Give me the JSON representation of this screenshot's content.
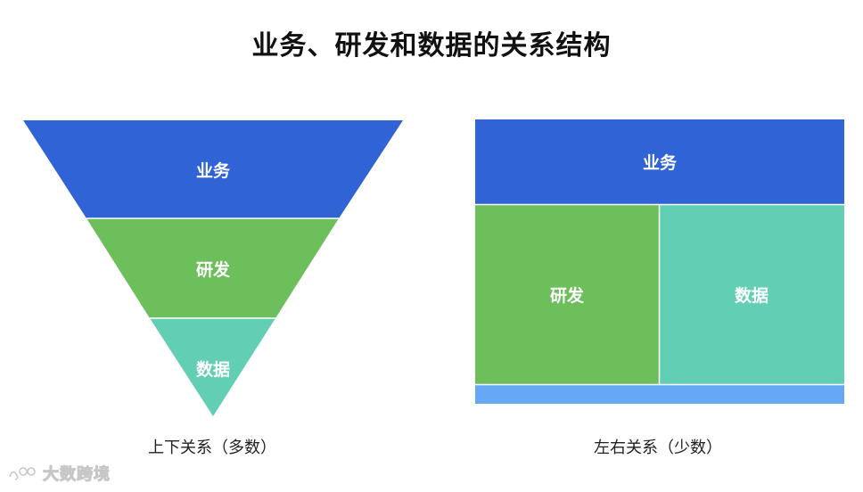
{
  "title": "业务、研发和数据的关系结构",
  "funnel": {
    "layers": [
      {
        "label": "业务",
        "color": "#2F63D6"
      },
      {
        "label": "研发",
        "color": "#6DBF5C"
      },
      {
        "label": "数据",
        "color": "#62CFB4"
      }
    ],
    "caption": "上下关系（多数）"
  },
  "blocks": {
    "top": {
      "label": "业务",
      "color": "#2F63D6"
    },
    "left": {
      "label": "研发",
      "color": "#6DBF5C"
    },
    "right": {
      "label": "数据",
      "color": "#62CFB4"
    },
    "bottom_bar_color": "#66A8F5",
    "caption": "左右关系（少数）"
  },
  "watermark": {
    "text": "大数跨境",
    "icon": "logo-icon"
  }
}
